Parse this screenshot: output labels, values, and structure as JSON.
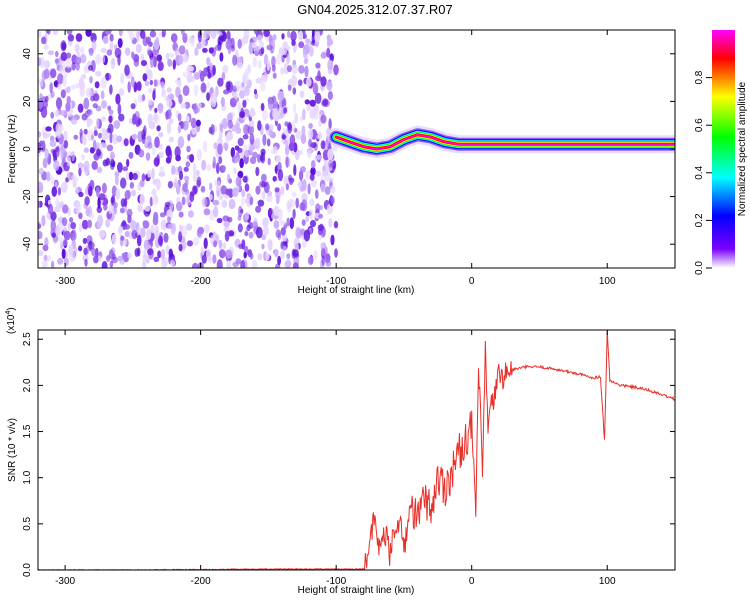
{
  "title": "GN04.2025.312.07.37.R07",
  "chart_data": [
    {
      "type": "heatmap",
      "xlabel": "Height of straight line (km)",
      "ylabel": "Frequency (Hz)",
      "xlim": [
        -320,
        150
      ],
      "ylim": [
        -50,
        50
      ],
      "xticks": [
        -300,
        -200,
        -100,
        0,
        100
      ],
      "yticks": [
        -40,
        -20,
        0,
        20,
        40
      ],
      "noise_region_x": [
        -320,
        -100
      ],
      "noise_level": "low (white to violet speckle)",
      "ridge": {
        "description": "continuous high-amplitude trace near 0 Hz",
        "x": [
          -100,
          -90,
          -80,
          -70,
          -60,
          -50,
          -40,
          -30,
          -20,
          -10,
          0,
          10,
          20,
          40,
          60,
          80,
          90,
          100,
          120,
          150
        ],
        "y": [
          5,
          3,
          1,
          0,
          1,
          4,
          6,
          5,
          3,
          2,
          2,
          2,
          2,
          2,
          2,
          2,
          2,
          2,
          2,
          2
        ]
      },
      "colorbar": {
        "label": "Normalized spectral amplitude",
        "range": [
          0,
          1
        ],
        "ticks": [
          "0.0",
          "0.2",
          "0.4",
          "0.6",
          "0.8"
        ],
        "colors": [
          "#ffffff",
          "#7a00ff",
          "#0000ff",
          "#00ffff",
          "#00ff00",
          "#ffff00",
          "#ff0000",
          "#ff00ff"
        ]
      },
      "grid": false
    },
    {
      "type": "line",
      "xlabel": "Height of straight line (km)",
      "ylabel": "SNR (10 * v/v)",
      "scale_label": "(x10",
      "scale_exp": "4",
      "xlim": [
        -320,
        150
      ],
      "ylim": [
        0,
        2.6
      ],
      "xticks": [
        -300,
        -200,
        -100,
        0,
        100
      ],
      "yticks": [
        "0.0",
        "0.5",
        "1.0",
        "1.5",
        "2.0",
        "2.5"
      ],
      "color": "#e8302a",
      "series": [
        {
          "x": [
            -320,
            -250,
            -150,
            -100,
            -80,
            -75,
            -72,
            -68,
            -65,
            -60,
            -55,
            -50,
            -45,
            -40,
            -35,
            -30,
            -25,
            -20,
            -15,
            -10,
            -5,
            0,
            3,
            5,
            8,
            10,
            12,
            15,
            20,
            25,
            30,
            40,
            50,
            60,
            70,
            80,
            90,
            95,
            98,
            100,
            102,
            105,
            110,
            120,
            130,
            140,
            150
          ],
          "y": [
            0.0,
            0.0,
            0.01,
            0.01,
            0.01,
            0.3,
            0.55,
            0.2,
            0.45,
            0.15,
            0.6,
            0.25,
            0.7,
            0.55,
            0.8,
            0.65,
            1.0,
            0.9,
            1.05,
            1.25,
            1.4,
            1.55,
            0.6,
            2.2,
            1.0,
            2.4,
            1.5,
            1.8,
            2.1,
            2.12,
            2.17,
            2.2,
            2.2,
            2.18,
            2.15,
            2.12,
            2.08,
            2.1,
            1.4,
            2.6,
            2.05,
            2.03,
            2.0,
            1.98,
            1.95,
            1.9,
            1.85
          ]
        }
      ],
      "grid": false
    }
  ]
}
